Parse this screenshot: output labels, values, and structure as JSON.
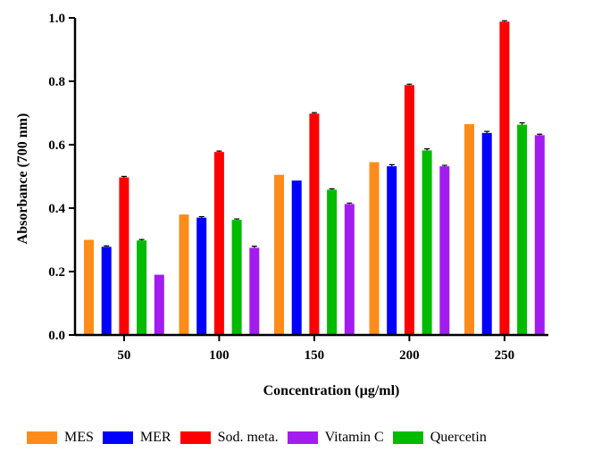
{
  "chart_data": {
    "type": "bar",
    "title": "",
    "xlabel": "Concentration (µg/ml)",
    "ylabel": "Absorbance (700 nm)",
    "ylim": [
      0,
      1.0
    ],
    "yticks": [
      "0.0",
      "0.2",
      "0.4",
      "0.6",
      "0.8",
      "1.0"
    ],
    "categories": [
      "50",
      "100",
      "150",
      "200",
      "250"
    ],
    "series": [
      {
        "name": "MES",
        "color": "#ff8c1a",
        "values": [
          0.3,
          0.38,
          0.505,
          0.545,
          0.665
        ],
        "errors": [
          0.0,
          0.0,
          0.0,
          0.0,
          0.0
        ]
      },
      {
        "name": "MER",
        "color": "#0000ff",
        "values": [
          0.278,
          0.37,
          0.487,
          0.532,
          0.637
        ],
        "errors": [
          0.003,
          0.003,
          0.0,
          0.005,
          0.005
        ]
      },
      {
        "name": "Sod. meta.",
        "color": "#ff0000",
        "values": [
          0.497,
          0.577,
          0.698,
          0.788,
          0.988
        ],
        "errors": [
          0.003,
          0.003,
          0.003,
          0.003,
          0.003
        ]
      },
      {
        "name": "Quercetin",
        "color": "#00bb00",
        "values": [
          0.298,
          0.363,
          0.458,
          0.582,
          0.663
        ],
        "errors": [
          0.003,
          0.003,
          0.003,
          0.005,
          0.006
        ]
      },
      {
        "name": "Vitamin C",
        "color": "#a21cf0",
        "values": [
          0.19,
          0.275,
          0.413,
          0.532,
          0.63
        ],
        "errors": [
          0.0,
          0.005,
          0.003,
          0.003,
          0.003
        ]
      }
    ],
    "legend": {
      "position": "bottom",
      "order": [
        "MES",
        "MER",
        "Sod. meta.",
        "Vitamin C",
        "Quercetin"
      ]
    },
    "grid": false
  }
}
